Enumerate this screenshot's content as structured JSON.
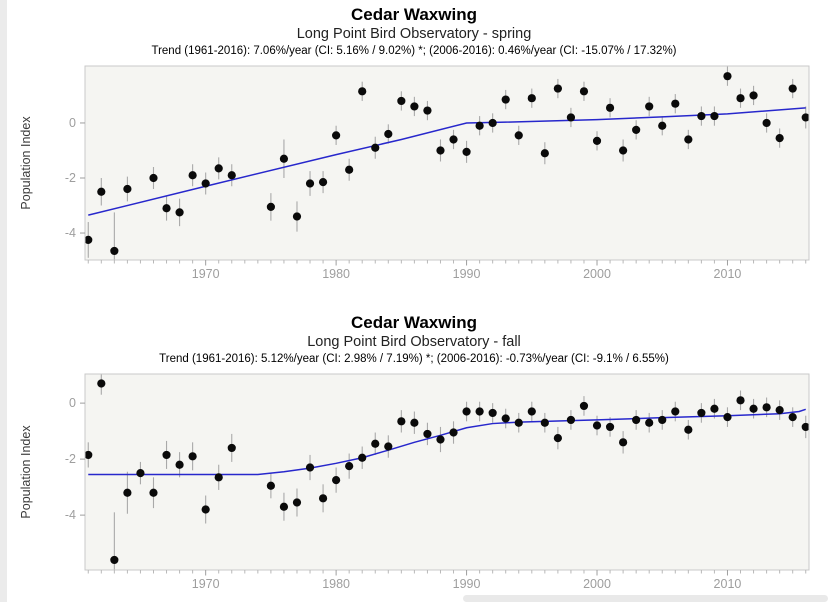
{
  "page": {
    "background": "#ffffff",
    "left_gutter_color": "#ebebeb",
    "scrollbar_color": "#e9e9e9"
  },
  "chart_data": [
    {
      "type": "scatter",
      "title": "Cedar Waxwing",
      "subtitle": "Long Point Bird Observatory - spring",
      "trend_annotation": "Trend (1961-2016): 7.06%/year (CI: 5.16% / 9.02%) *; (2006-2016): 0.46%/year (CI: -15.07% / 17.32%)",
      "ylabel": "Population Index",
      "xlabel": "",
      "grid": false,
      "legend": false,
      "xlim": [
        1960.75,
        2016.25
      ],
      "ylim": [
        -4.98,
        2.07
      ],
      "xticks": [
        1970,
        1980,
        1990,
        2000,
        2010
      ],
      "yticks": [
        0,
        -2,
        -4
      ],
      "minor_xtick_step": 1,
      "colors": {
        "point": "#0a0a0a",
        "trend_line": "#2727cc",
        "error_bar": "#a9a9a9",
        "plot_bg": "#f5f5f2",
        "axis_border": "#c9c9c9",
        "tick_label": "#9e9e9e",
        "axis_label": "#3a3a3a"
      },
      "points": [
        [
          1961,
          -4.25,
          0.65
        ],
        [
          1962,
          -2.5,
          0.5
        ],
        [
          1963,
          -4.65,
          1.4
        ],
        [
          1964,
          -2.4,
          0.45
        ],
        [
          1966,
          -2.0,
          0.4
        ],
        [
          1967,
          -3.1,
          0.45
        ],
        [
          1968,
          -3.25,
          0.5
        ],
        [
          1969,
          -1.9,
          0.4
        ],
        [
          1970,
          -2.2,
          0.4
        ],
        [
          1971,
          -1.65,
          0.4
        ],
        [
          1972,
          -1.9,
          0.4
        ],
        [
          1975,
          -3.05,
          0.5
        ],
        [
          1976,
          -1.3,
          0.7
        ],
        [
          1977,
          -3.4,
          0.55
        ],
        [
          1978,
          -2.2,
          0.45
        ],
        [
          1979,
          -2.15,
          0.4
        ],
        [
          1980,
          -0.45,
          0.35
        ],
        [
          1981,
          -1.7,
          0.4
        ],
        [
          1982,
          1.15,
          0.35
        ],
        [
          1983,
          -0.9,
          0.4
        ],
        [
          1984,
          -0.4,
          0.35
        ],
        [
          1985,
          0.8,
          0.35
        ],
        [
          1986,
          0.6,
          0.35
        ],
        [
          1987,
          0.45,
          0.35
        ],
        [
          1988,
          -1.0,
          0.4
        ],
        [
          1989,
          -0.6,
          0.35
        ],
        [
          1990,
          -1.05,
          0.4
        ],
        [
          1991,
          -0.1,
          0.35
        ],
        [
          1992,
          0.0,
          0.35
        ],
        [
          1993,
          0.85,
          0.35
        ],
        [
          1994,
          -0.45,
          0.35
        ],
        [
          1995,
          0.9,
          0.35
        ],
        [
          1996,
          -1.1,
          0.4
        ],
        [
          1997,
          1.25,
          0.35
        ],
        [
          1998,
          0.2,
          0.35
        ],
        [
          1999,
          1.15,
          0.35
        ],
        [
          2000,
          -0.65,
          0.35
        ],
        [
          2001,
          0.55,
          0.35
        ],
        [
          2002,
          -1.0,
          0.4
        ],
        [
          2003,
          -0.25,
          0.35
        ],
        [
          2004,
          0.6,
          0.35
        ],
        [
          2005,
          -0.1,
          0.35
        ],
        [
          2006,
          0.7,
          0.35
        ],
        [
          2007,
          -0.6,
          0.35
        ],
        [
          2008,
          0.25,
          0.35
        ],
        [
          2009,
          0.25,
          0.35
        ],
        [
          2010,
          1.7,
          0.35
        ],
        [
          2011,
          0.9,
          0.35
        ],
        [
          2012,
          1.0,
          0.35
        ],
        [
          2013,
          0.0,
          0.35
        ],
        [
          2014,
          -0.55,
          0.35
        ],
        [
          2015,
          1.25,
          0.35
        ],
        [
          2016,
          0.2,
          0.4
        ]
      ],
      "trend_line": [
        [
          1961,
          -3.35
        ],
        [
          1970,
          -2.3
        ],
        [
          1980,
          -1.15
        ],
        [
          1985,
          -0.6
        ],
        [
          1990,
          0.0
        ],
        [
          1993,
          0.03
        ],
        [
          2000,
          0.12
        ],
        [
          2005,
          0.22
        ],
        [
          2010,
          0.33
        ],
        [
          2016,
          0.55
        ]
      ]
    },
    {
      "type": "scatter",
      "title": "Cedar Waxwing",
      "subtitle": "Long Point Bird Observatory - fall",
      "trend_annotation": "Trend (1961-2016): 5.12%/year (CI: 2.98% / 7.19%) *; (2006-2016): -0.73%/year (CI: -9.1% / 6.55%)",
      "ylabel": "Population Index",
      "xlabel": "",
      "grid": false,
      "legend": false,
      "xlim": [
        1960.75,
        2016.25
      ],
      "ylim": [
        -5.96,
        1.04
      ],
      "xticks": [
        1970,
        1980,
        1990,
        2000,
        2010
      ],
      "yticks": [
        0,
        -2,
        -4
      ],
      "minor_xtick_step": 1,
      "colors": {
        "point": "#0a0a0a",
        "trend_line": "#2727cc",
        "error_bar": "#a9a9a9",
        "plot_bg": "#f5f5f2",
        "axis_border": "#c9c9c9",
        "tick_label": "#9e9e9e",
        "axis_label": "#3a3a3a"
      },
      "points": [
        [
          1961,
          -1.85,
          0.45
        ],
        [
          1962,
          0.7,
          0.4
        ],
        [
          1963,
          -5.6,
          1.7
        ],
        [
          1964,
          -3.2,
          0.75
        ],
        [
          1965,
          -2.5,
          0.4
        ],
        [
          1966,
          -3.2,
          0.55
        ],
        [
          1967,
          -1.85,
          0.5
        ],
        [
          1968,
          -2.2,
          0.45
        ],
        [
          1969,
          -1.9,
          0.5
        ],
        [
          1970,
          -3.8,
          0.5
        ],
        [
          1971,
          -2.65,
          0.45
        ],
        [
          1972,
          -1.6,
          0.5
        ],
        [
          1975,
          -2.95,
          0.45
        ],
        [
          1976,
          -3.7,
          0.5
        ],
        [
          1977,
          -3.55,
          0.5
        ],
        [
          1978,
          -2.3,
          0.45
        ],
        [
          1979,
          -3.4,
          0.5
        ],
        [
          1980,
          -2.75,
          0.45
        ],
        [
          1981,
          -2.25,
          0.45
        ],
        [
          1982,
          -1.95,
          0.4
        ],
        [
          1983,
          -1.45,
          0.4
        ],
        [
          1984,
          -1.55,
          0.4
        ],
        [
          1985,
          -0.65,
          0.4
        ],
        [
          1986,
          -0.7,
          0.4
        ],
        [
          1987,
          -1.1,
          0.4
        ],
        [
          1988,
          -1.3,
          0.45
        ],
        [
          1989,
          -1.05,
          0.4
        ],
        [
          1990,
          -0.3,
          0.35
        ],
        [
          1991,
          -0.3,
          0.35
        ],
        [
          1992,
          -0.35,
          0.35
        ],
        [
          1993,
          -0.55,
          0.35
        ],
        [
          1994,
          -0.7,
          0.35
        ],
        [
          1995,
          -0.3,
          0.35
        ],
        [
          1996,
          -0.7,
          0.35
        ],
        [
          1997,
          -1.25,
          0.4
        ],
        [
          1998,
          -0.6,
          0.35
        ],
        [
          1999,
          -0.1,
          0.35
        ],
        [
          2000,
          -0.8,
          0.35
        ],
        [
          2001,
          -0.85,
          0.35
        ],
        [
          2002,
          -1.4,
          0.4
        ],
        [
          2003,
          -0.6,
          0.35
        ],
        [
          2004,
          -0.7,
          0.35
        ],
        [
          2005,
          -0.6,
          0.35
        ],
        [
          2006,
          -0.3,
          0.35
        ],
        [
          2007,
          -0.95,
          0.35
        ],
        [
          2008,
          -0.35,
          0.35
        ],
        [
          2009,
          -0.2,
          0.35
        ],
        [
          2010,
          -0.5,
          0.35
        ],
        [
          2011,
          0.1,
          0.35
        ],
        [
          2012,
          -0.2,
          0.35
        ],
        [
          2013,
          -0.15,
          0.35
        ],
        [
          2014,
          -0.25,
          0.35
        ],
        [
          2015,
          -0.5,
          0.35
        ],
        [
          2016,
          -0.85,
          0.4
        ]
      ],
      "trend_line": [
        [
          1961,
          -2.55
        ],
        [
          1974,
          -2.55
        ],
        [
          1976,
          -2.45
        ],
        [
          1978,
          -2.32
        ],
        [
          1980,
          -2.15
        ],
        [
          1982,
          -1.95
        ],
        [
          1984,
          -1.68
        ],
        [
          1986,
          -1.4
        ],
        [
          1988,
          -1.15
        ],
        [
          1990,
          -0.88
        ],
        [
          1992,
          -0.73
        ],
        [
          1994,
          -0.68
        ],
        [
          2000,
          -0.6
        ],
        [
          2005,
          -0.52
        ],
        [
          2010,
          -0.45
        ],
        [
          2014,
          -0.38
        ],
        [
          2015.5,
          -0.3
        ],
        [
          2016,
          -0.22
        ]
      ]
    }
  ]
}
